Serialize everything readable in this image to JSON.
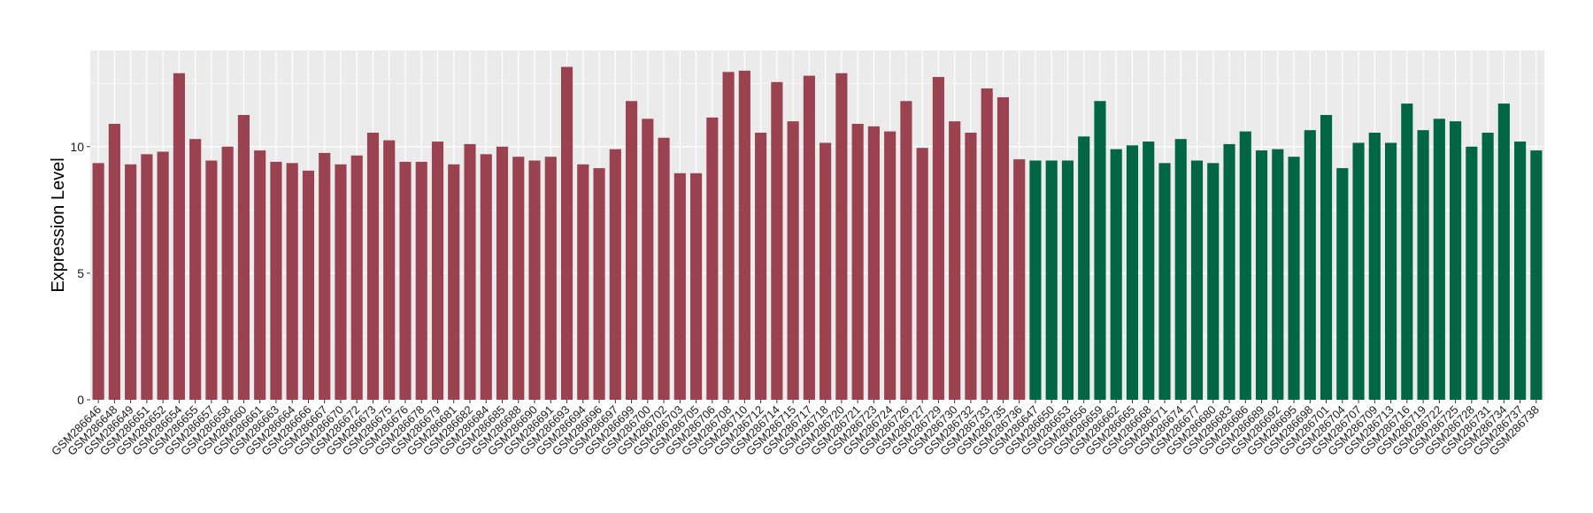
{
  "chart_data": {
    "type": "bar",
    "title": "",
    "xlabel": "",
    "ylabel": "Expression Level",
    "ylim": [
      0,
      13.8
    ],
    "yticks": [
      0,
      5,
      10
    ],
    "grid": true,
    "colors": {
      "group1": "#9B4250",
      "group2": "#006643",
      "panel": "#EBEBEB",
      "gridline": "#FFFFFF"
    },
    "categories": [
      "GSM286646",
      "GSM286648",
      "GSM286649",
      "GSM286651",
      "GSM286652",
      "GSM286654",
      "GSM286655",
      "GSM286657",
      "GSM286658",
      "GSM286660",
      "GSM286661",
      "GSM286663",
      "GSM286664",
      "GSM286666",
      "GSM286667",
      "GSM286670",
      "GSM286672",
      "GSM286673",
      "GSM286675",
      "GSM286676",
      "GSM286678",
      "GSM286679",
      "GSM286681",
      "GSM286682",
      "GSM286684",
      "GSM286685",
      "GSM286688",
      "GSM286690",
      "GSM286691",
      "GSM286693",
      "GSM286694",
      "GSM286696",
      "GSM286697",
      "GSM286699",
      "GSM286700",
      "GSM286702",
      "GSM286703",
      "GSM286705",
      "GSM286706",
      "GSM286708",
      "GSM286710",
      "GSM286712",
      "GSM286714",
      "GSM286715",
      "GSM286717",
      "GSM286718",
      "GSM286720",
      "GSM286721",
      "GSM286723",
      "GSM286724",
      "GSM286726",
      "GSM286727",
      "GSM286729",
      "GSM286730",
      "GSM286732",
      "GSM286733",
      "GSM286735",
      "GSM286736",
      "GSM286647",
      "GSM286650",
      "GSM286653",
      "GSM286656",
      "GSM286659",
      "GSM286662",
      "GSM286665",
      "GSM286668",
      "GSM286671",
      "GSM286674",
      "GSM286677",
      "GSM286680",
      "GSM286683",
      "GSM286686",
      "GSM286689",
      "GSM286692",
      "GSM286695",
      "GSM286698",
      "GSM286701",
      "GSM286704",
      "GSM286707",
      "GSM286709",
      "GSM286713",
      "GSM286716",
      "GSM286719",
      "GSM286722",
      "GSM286725",
      "GSM286728",
      "GSM286731",
      "GSM286734",
      "GSM286737",
      "GSM286738"
    ],
    "values": [
      9.35,
      10.9,
      9.3,
      9.7,
      9.8,
      12.9,
      10.3,
      9.45,
      10.0,
      11.25,
      9.85,
      9.4,
      9.35,
      9.05,
      9.75,
      9.3,
      9.65,
      10.55,
      10.25,
      9.4,
      9.4,
      10.2,
      9.3,
      10.1,
      9.7,
      10.0,
      9.6,
      9.45,
      9.6,
      13.15,
      9.3,
      9.15,
      9.9,
      11.8,
      11.1,
      10.35,
      8.95,
      8.95,
      11.15,
      12.95,
      13.0,
      10.55,
      12.55,
      11.0,
      12.8,
      10.15,
      12.9,
      10.9,
      10.8,
      10.6,
      11.8,
      9.95,
      12.75,
      11.0,
      10.55,
      12.3,
      11.95,
      9.5,
      9.45,
      9.45,
      9.45,
      10.4,
      11.8,
      9.9,
      10.05,
      10.2,
      9.35,
      10.3,
      9.45,
      9.35,
      10.1,
      10.6,
      9.85,
      9.9,
      9.6,
      10.65,
      11.25,
      9.15,
      10.15,
      10.55,
      10.15,
      11.7,
      10.65,
      11.1,
      11.0,
      10.0,
      10.55,
      11.7,
      10.2,
      9.85
    ],
    "groups": [
      1,
      1,
      1,
      1,
      1,
      1,
      1,
      1,
      1,
      1,
      1,
      1,
      1,
      1,
      1,
      1,
      1,
      1,
      1,
      1,
      1,
      1,
      1,
      1,
      1,
      1,
      1,
      1,
      1,
      1,
      1,
      1,
      1,
      1,
      1,
      1,
      1,
      1,
      1,
      1,
      1,
      1,
      1,
      1,
      1,
      1,
      1,
      1,
      1,
      1,
      1,
      1,
      1,
      1,
      1,
      1,
      1,
      1,
      2,
      2,
      2,
      2,
      2,
      2,
      2,
      2,
      2,
      2,
      2,
      2,
      2,
      2,
      2,
      2,
      2,
      2,
      2,
      2,
      2,
      2,
      2,
      2,
      2,
      2,
      2,
      2,
      2,
      2,
      2,
      2
    ]
  }
}
